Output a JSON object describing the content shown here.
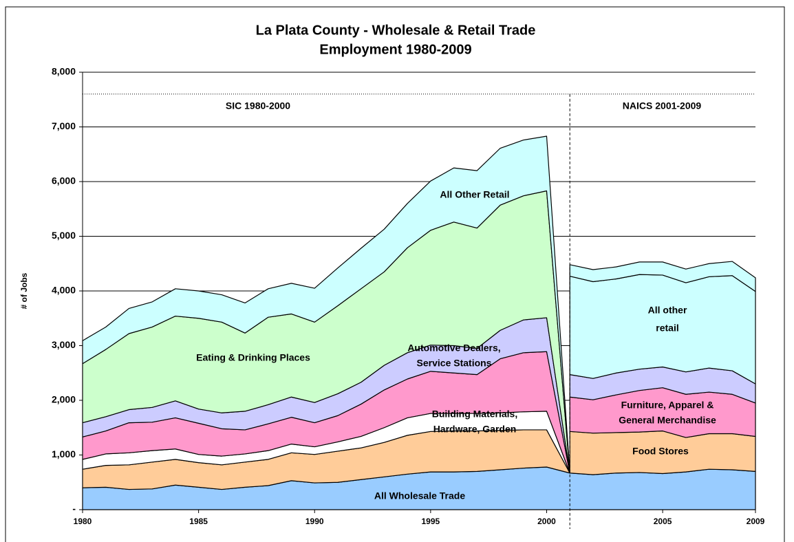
{
  "chart_data": {
    "type": "stacked_area",
    "title": [
      "La Plata County - Wholesale & Retail Trade",
      "Employment 1980-2009"
    ],
    "y_label": "# of Jobs",
    "x": [
      1980,
      1981,
      1982,
      1983,
      1984,
      1985,
      1986,
      1987,
      1988,
      1989,
      1990,
      1991,
      1992,
      1993,
      1994,
      1995,
      1996,
      1997,
      1998,
      1999,
      2000,
      2001,
      2002,
      2003,
      2004,
      2005,
      2006,
      2007,
      2008,
      2009
    ],
    "xlim": [
      1980,
      2009
    ],
    "xticks": [
      1980,
      1985,
      1990,
      1995,
      2000,
      2005,
      2009
    ],
    "ylim": [
      0,
      8000
    ],
    "yticks": [
      {
        "value": 0,
        "label": "-"
      },
      {
        "value": 1000,
        "label": "1,000"
      },
      {
        "value": 2000,
        "label": "2,000"
      },
      {
        "value": 3000,
        "label": "3,000"
      },
      {
        "value": 4000,
        "label": "4,000"
      },
      {
        "value": 5000,
        "label": "5,000"
      },
      {
        "value": 6000,
        "label": "6,000"
      },
      {
        "value": 7000,
        "label": "7,000"
      },
      {
        "value": 8000,
        "label": "8,000"
      }
    ],
    "grid": true,
    "reference_line": 7600,
    "divider_x": 2001,
    "periods": [
      "SIC 1980-2000",
      "NAICS 2001-2009"
    ],
    "series": [
      {
        "label": [
          "All Wholesale Trade"
        ],
        "color": "#99ccff",
        "values": [
          400,
          410,
          370,
          380,
          450,
          410,
          370,
          410,
          440,
          530,
          490,
          500,
          550,
          600,
          650,
          690,
          690,
          700,
          730,
          760,
          780,
          670,
          640,
          670,
          680,
          660,
          690,
          740,
          730,
          700
        ]
      },
      {
        "color": "#ffcc99",
        "values": [
          340,
          400,
          450,
          490,
          470,
          450,
          450,
          460,
          480,
          510,
          520,
          570,
          580,
          630,
          710,
          740,
          750,
          740,
          720,
          700,
          680,
          0,
          null,
          null,
          null,
          null,
          null,
          null,
          null,
          null
        ]
      },
      {
        "label": [
          "Building Materials,",
          "Hardware, Garden"
        ],
        "color": "#ffffff",
        "values": [
          180,
          210,
          220,
          210,
          190,
          150,
          160,
          150,
          160,
          160,
          140,
          170,
          210,
          270,
          320,
          330,
          320,
          320,
          320,
          330,
          340,
          0,
          null,
          null,
          null,
          null,
          null,
          null,
          null,
          null
        ]
      },
      {
        "color": "#ff99cc",
        "values": [
          410,
          420,
          550,
          520,
          570,
          570,
          500,
          440,
          490,
          490,
          440,
          480,
          590,
          690,
          710,
          770,
          740,
          710,
          990,
          1080,
          1090,
          0,
          null,
          null,
          null,
          null,
          null,
          null,
          null,
          null
        ]
      },
      {
        "label": [
          "Automotive Dealers,",
          "Service Stations"
        ],
        "color": "#ccccff",
        "values": [
          260,
          260,
          240,
          270,
          310,
          260,
          290,
          340,
          350,
          370,
          370,
          400,
          400,
          450,
          480,
          480,
          500,
          480,
          520,
          600,
          620,
          0,
          null,
          null,
          null,
          null,
          null,
          null,
          null,
          null
        ]
      },
      {
        "label": [
          "Eating & Drinking Places"
        ],
        "color": "#ccffcc",
        "values": [
          1080,
          1230,
          1390,
          1470,
          1550,
          1660,
          1660,
          1430,
          1600,
          1520,
          1470,
          1610,
          1710,
          1710,
          1920,
          2100,
          2260,
          2200,
          2290,
          2270,
          2320,
          0,
          null,
          null,
          null,
          null,
          null,
          null,
          null,
          null
        ]
      },
      {
        "label": [
          "All Other Retail"
        ],
        "color": "#ccffff",
        "values": [
          420,
          410,
          460,
          460,
          500,
          500,
          500,
          550,
          520,
          560,
          620,
          690,
          740,
          780,
          810,
          900,
          990,
          1050,
          1040,
          1020,
          1000,
          0,
          null,
          null,
          null,
          null,
          null,
          null,
          null,
          null
        ]
      },
      {
        "label": [
          "Food Stores"
        ],
        "color": "#ffcc99",
        "values": [
          null,
          null,
          null,
          null,
          null,
          null,
          null,
          null,
          null,
          null,
          null,
          null,
          null,
          null,
          null,
          null,
          null,
          null,
          null,
          null,
          null,
          760,
          760,
          740,
          740,
          780,
          630,
          650,
          660,
          640
        ]
      },
      {
        "label": [
          "Furniture, Apparel &",
          "General Merchandise"
        ],
        "color": "#ff99cc",
        "values": [
          null,
          null,
          null,
          null,
          null,
          null,
          null,
          null,
          null,
          null,
          null,
          null,
          null,
          null,
          null,
          null,
          null,
          null,
          null,
          null,
          null,
          630,
          610,
          690,
          760,
          790,
          790,
          760,
          720,
          610
        ]
      },
      {
        "color": "#ccccff",
        "values": [
          null,
          null,
          null,
          null,
          null,
          null,
          null,
          null,
          null,
          null,
          null,
          null,
          null,
          null,
          null,
          null,
          null,
          null,
          null,
          null,
          null,
          410,
          390,
          400,
          390,
          380,
          410,
          440,
          430,
          350
        ]
      },
      {
        "label": [
          "All other",
          "retail"
        ],
        "color": "#ccffff",
        "values": [
          null,
          null,
          null,
          null,
          null,
          null,
          null,
          null,
          null,
          null,
          null,
          null,
          null,
          null,
          null,
          null,
          null,
          null,
          null,
          null,
          null,
          1800,
          1770,
          1720,
          1730,
          1680,
          1630,
          1670,
          1740,
          1690
        ]
      },
      {
        "color": "#ccffff",
        "values": [
          null,
          null,
          null,
          null,
          null,
          null,
          null,
          null,
          null,
          null,
          null,
          null,
          null,
          null,
          null,
          null,
          null,
          null,
          null,
          null,
          null,
          210,
          220,
          220,
          230,
          240,
          250,
          240,
          260,
          250
        ]
      }
    ]
  }
}
